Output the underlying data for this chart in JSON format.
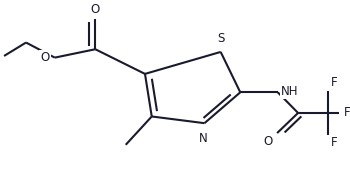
{
  "background": "#ffffff",
  "bond_color": "#1a1a2e",
  "bond_width": 1.5,
  "fig_width": 3.5,
  "fig_height": 1.74,
  "dpi": 100,
  "xlim": [
    0.0,
    1.0
  ],
  "ylim": [
    0.0,
    1.0
  ]
}
